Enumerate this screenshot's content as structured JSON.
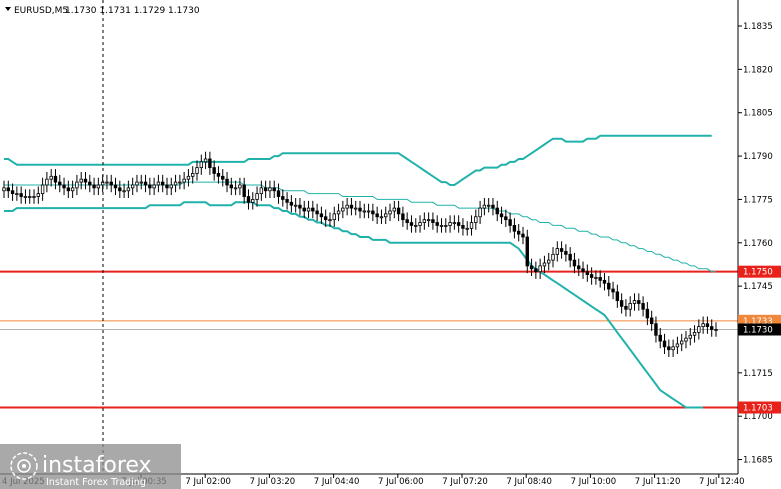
{
  "header": {
    "symbol": "EURUSD,M5",
    "ohlc": "1.1730 1.1731 1.1729 1.1730"
  },
  "watermark": {
    "brand": "instaforex",
    "tagline": "Instant Forex Trading"
  },
  "colors": {
    "background": "#ffffff",
    "axis": "#000000",
    "candle": "#000000",
    "band": "#20b2aa",
    "support_line": "#e8221b",
    "price_line": "#f0883c",
    "current_line": "#b0b0b0",
    "current_tag": "#000000"
  },
  "chart_data": {
    "type": "candlestick",
    "title": "EURUSD,M5",
    "ylim": [
      1.168,
      1.1844
    ],
    "y_ticks": [
      "1.1835",
      "1.1820",
      "1.1805",
      "1.1790",
      "1.1775",
      "1.1760",
      "1.1745",
      "1.1730",
      "1.1715",
      "1.1700",
      "1.1685"
    ],
    "x_ticks": [
      "7 Jul 00:35",
      "7 Jul 02:00",
      "7 Jul 03:20",
      "7 Jul 04:40",
      "7 Jul 06:00",
      "7 Jul 07:20",
      "7 Jul 08:40",
      "7 Jul 10:00",
      "7 Jul 11:20",
      "7 Jul 12:40"
    ],
    "first_x_label": "4 Jul 2025",
    "horizontal_levels": [
      {
        "label": "1.1750",
        "value": 1.175,
        "kind": "support"
      },
      {
        "label": "1.1703",
        "value": 1.1703,
        "kind": "support"
      },
      {
        "label": "1.1733",
        "value": 1.1733,
        "kind": "price"
      }
    ],
    "current_price": {
      "label": "1.1730",
      "value": 1.173
    },
    "series": [
      {
        "name": "close",
        "values": [
          1.1779,
          1.1778,
          1.1777,
          1.1777,
          1.1776,
          1.1776,
          1.1776,
          1.1776,
          1.1777,
          1.178,
          1.1782,
          1.1783,
          1.1781,
          1.178,
          1.1779,
          1.1778,
          1.1779,
          1.1781,
          1.1782,
          1.1781,
          1.178,
          1.1779,
          1.178,
          1.1781,
          1.1781,
          1.178,
          1.1779,
          1.1778,
          1.1778,
          1.1779,
          1.178,
          1.1781,
          1.1781,
          1.178,
          1.1779,
          1.178,
          1.1781,
          1.178,
          1.1779,
          1.178,
          1.1781,
          1.1781,
          1.1782,
          1.1783,
          1.1784,
          1.1786,
          1.1788,
          1.1789,
          1.1786,
          1.1784,
          1.1783,
          1.1782,
          1.178,
          1.1779,
          1.1779,
          1.178,
          1.1776,
          1.1774,
          1.1775,
          1.1777,
          1.1779,
          1.1778,
          1.1779,
          1.1778,
          1.1776,
          1.1775,
          1.1774,
          1.1773,
          1.1773,
          1.1772,
          1.1771,
          1.1772,
          1.1771,
          1.177,
          1.1769,
          1.1768,
          1.1768,
          1.177,
          1.1771,
          1.1772,
          1.1773,
          1.1772,
          1.1772,
          1.1771,
          1.1771,
          1.1771,
          1.177,
          1.1769,
          1.1769,
          1.177,
          1.1771,
          1.1772,
          1.177,
          1.1768,
          1.1767,
          1.1766,
          1.1766,
          1.1767,
          1.1768,
          1.1768,
          1.1767,
          1.1766,
          1.1766,
          1.1766,
          1.1767,
          1.1767,
          1.1766,
          1.1765,
          1.1765,
          1.1767,
          1.1769,
          1.1772,
          1.1773,
          1.1773,
          1.1772,
          1.177,
          1.1769,
          1.1768,
          1.1766,
          1.1764,
          1.1763,
          1.1762,
          1.1752,
          1.1751,
          1.175,
          1.1752,
          1.1753,
          1.1754,
          1.1756,
          1.1758,
          1.1757,
          1.1756,
          1.1754,
          1.1752,
          1.1751,
          1.175,
          1.1749,
          1.1748,
          1.1748,
          1.1747,
          1.1746,
          1.1744,
          1.1743,
          1.174,
          1.1738,
          1.1737,
          1.1739,
          1.174,
          1.1739,
          1.1737,
          1.1734,
          1.1732,
          1.1728,
          1.1726,
          1.1724,
          1.1723,
          1.1724,
          1.1725,
          1.1726,
          1.1727,
          1.1728,
          1.1729,
          1.1731,
          1.1732,
          1.1731,
          1.173,
          1.173
        ]
      },
      {
        "name": "open",
        "values": [
          1.1778,
          1.1779,
          1.1778,
          1.1777,
          1.1777,
          1.1776,
          1.1776,
          1.1776,
          1.1776,
          1.1777,
          1.178,
          1.1782,
          1.1783,
          1.1781,
          1.178,
          1.1779,
          1.1778,
          1.1779,
          1.1781,
          1.1782,
          1.1781,
          1.178,
          1.1779,
          1.178,
          1.1781,
          1.1781,
          1.178,
          1.1779,
          1.1778,
          1.1778,
          1.1779,
          1.178,
          1.1781,
          1.1781,
          1.178,
          1.1779,
          1.178,
          1.1781,
          1.178,
          1.1779,
          1.178,
          1.1781,
          1.1781,
          1.1782,
          1.1783,
          1.1784,
          1.1786,
          1.1788,
          1.1789,
          1.1786,
          1.1784,
          1.1783,
          1.1782,
          1.178,
          1.1779,
          1.1779,
          1.178,
          1.1776,
          1.1774,
          1.1775,
          1.1777,
          1.1779,
          1.1778,
          1.1779,
          1.1778,
          1.1776,
          1.1775,
          1.1774,
          1.1773,
          1.1773,
          1.1772,
          1.1771,
          1.1772,
          1.1771,
          1.177,
          1.1769,
          1.1768,
          1.1768,
          1.177,
          1.1771,
          1.1772,
          1.1773,
          1.1772,
          1.1772,
          1.1771,
          1.1771,
          1.1771,
          1.177,
          1.1769,
          1.1769,
          1.177,
          1.1771,
          1.1772,
          1.177,
          1.1768,
          1.1767,
          1.1766,
          1.1766,
          1.1767,
          1.1768,
          1.1768,
          1.1767,
          1.1766,
          1.1766,
          1.1766,
          1.1767,
          1.1767,
          1.1766,
          1.1765,
          1.1765,
          1.1767,
          1.1769,
          1.1772,
          1.1773,
          1.1773,
          1.1772,
          1.177,
          1.1769,
          1.1768,
          1.1766,
          1.1764,
          1.1763,
          1.1762,
          1.1752,
          1.1751,
          1.175,
          1.1752,
          1.1753,
          1.1754,
          1.1756,
          1.1758,
          1.1757,
          1.1756,
          1.1754,
          1.1752,
          1.1751,
          1.175,
          1.1749,
          1.1748,
          1.1748,
          1.1747,
          1.1746,
          1.1744,
          1.1743,
          1.174,
          1.1738,
          1.1737,
          1.1739,
          1.174,
          1.1739,
          1.1737,
          1.1734,
          1.1732,
          1.1728,
          1.1726,
          1.1724,
          1.1723,
          1.1724,
          1.1725,
          1.1726,
          1.1727,
          1.1728,
          1.1729,
          1.1731,
          1.1732,
          1.1731,
          1.173
        ]
      },
      {
        "name": "upper_band",
        "values": [
          1.1789,
          1.1789,
          1.1788,
          1.1787,
          1.1787,
          1.1787,
          1.1787,
          1.1787,
          1.1787,
          1.1787,
          1.1787,
          1.1787,
          1.1787,
          1.1787,
          1.1787,
          1.1787,
          1.1787,
          1.1787,
          1.1787,
          1.1787,
          1.1787,
          1.1787,
          1.1787,
          1.1787,
          1.1787,
          1.1787,
          1.1787,
          1.1787,
          1.1787,
          1.1787,
          1.1787,
          1.1787,
          1.1787,
          1.1787,
          1.1787,
          1.1787,
          1.1787,
          1.1787,
          1.1787,
          1.1787,
          1.1787,
          1.1787,
          1.1787,
          1.1787,
          1.1788,
          1.1788,
          1.1788,
          1.1788,
          1.1788,
          1.1788,
          1.1788,
          1.1788,
          1.1788,
          1.1788,
          1.1788,
          1.1788,
          1.1788,
          1.1789,
          1.1789,
          1.1789,
          1.1789,
          1.1789,
          1.1789,
          1.179,
          1.179,
          1.1791,
          1.1791,
          1.1791,
          1.1791,
          1.1791,
          1.1791,
          1.1791,
          1.1791,
          1.1791,
          1.1791,
          1.1791,
          1.1791,
          1.1791,
          1.1791,
          1.1791,
          1.1791,
          1.1791,
          1.1791,
          1.1791,
          1.1791,
          1.1791,
          1.1791,
          1.1791,
          1.1791,
          1.1791,
          1.1791,
          1.1791,
          1.1791,
          1.179,
          1.1789,
          1.1788,
          1.1787,
          1.1786,
          1.1785,
          1.1784,
          1.1783,
          1.1782,
          1.1781,
          1.1781,
          1.178,
          1.178,
          1.1781,
          1.1782,
          1.1783,
          1.1784,
          1.1785,
          1.1785,
          1.1786,
          1.1786,
          1.1786,
          1.1786,
          1.1787,
          1.1787,
          1.1788,
          1.1788,
          1.1789,
          1.1789,
          1.179,
          1.1791,
          1.1792,
          1.1793,
          1.1794,
          1.1795,
          1.1796,
          1.1796,
          1.1796,
          1.1795,
          1.1795,
          1.1795,
          1.1795,
          1.1795,
          1.1796,
          1.1796,
          1.1796,
          1.1797,
          1.1797,
          1.1797,
          1.1797,
          1.1797,
          1.1797,
          1.1797,
          1.1797,
          1.1797,
          1.1797,
          1.1797,
          1.1797,
          1.1797,
          1.1797,
          1.1797,
          1.1797,
          1.1797,
          1.1797,
          1.1797,
          1.1797,
          1.1797,
          1.1797,
          1.1797,
          1.1797,
          1.1797,
          1.1797,
          1.1797
        ]
      },
      {
        "name": "lower_band",
        "values": [
          1.1771,
          1.1771,
          1.1771,
          1.1772,
          1.1772,
          1.1772,
          1.1772,
          1.1772,
          1.1772,
          1.1772,
          1.1772,
          1.1772,
          1.1772,
          1.1772,
          1.1772,
          1.1772,
          1.1772,
          1.1772,
          1.1772,
          1.1772,
          1.1772,
          1.1772,
          1.1772,
          1.1772,
          1.1772,
          1.1772,
          1.1772,
          1.1772,
          1.1772,
          1.1772,
          1.1772,
          1.1772,
          1.1772,
          1.1772,
          1.1773,
          1.1773,
          1.1773,
          1.1773,
          1.1773,
          1.1773,
          1.1773,
          1.1773,
          1.1774,
          1.1774,
          1.1774,
          1.1774,
          1.1774,
          1.1774,
          1.1773,
          1.1773,
          1.1773,
          1.1773,
          1.1773,
          1.1773,
          1.1774,
          1.1774,
          1.1774,
          1.1774,
          1.1774,
          1.1773,
          1.1773,
          1.1773,
          1.1773,
          1.1772,
          1.1772,
          1.1771,
          1.1771,
          1.177,
          1.177,
          1.1769,
          1.1769,
          1.1768,
          1.1768,
          1.1767,
          1.1767,
          1.1766,
          1.1766,
          1.1765,
          1.1765,
          1.1764,
          1.1764,
          1.1763,
          1.1763,
          1.1762,
          1.1762,
          1.1762,
          1.1761,
          1.1761,
          1.1761,
          1.1761,
          1.176,
          1.176,
          1.176,
          1.176,
          1.176,
          1.176,
          1.176,
          1.176,
          1.176,
          1.176,
          1.176,
          1.176,
          1.176,
          1.176,
          1.176,
          1.176,
          1.176,
          1.176,
          1.176,
          1.176,
          1.176,
          1.176,
          1.176,
          1.176,
          1.176,
          1.176,
          1.176,
          1.176,
          1.176,
          1.1759,
          1.1758,
          1.1756,
          1.1754,
          1.1752,
          1.1751,
          1.175,
          1.1749,
          1.1748,
          1.1747,
          1.1746,
          1.1745,
          1.1744,
          1.1743,
          1.1742,
          1.1741,
          1.174,
          1.1739,
          1.1738,
          1.1737,
          1.1736,
          1.1735,
          1.1733,
          1.1731,
          1.1729,
          1.1727,
          1.1725,
          1.1723,
          1.1721,
          1.1719,
          1.1717,
          1.1715,
          1.1713,
          1.1711,
          1.1709,
          1.1708,
          1.1707,
          1.1706,
          1.1705,
          1.1704,
          1.1703,
          1.1703,
          1.1703,
          1.1703,
          1.1703
        ]
      },
      {
        "name": "moving_average",
        "values": [
          1.178,
          1.178,
          1.178,
          1.178,
          1.178,
          1.178,
          1.178,
          1.178,
          1.178,
          1.178,
          1.178,
          1.178,
          1.178,
          1.178,
          1.178,
          1.178,
          1.178,
          1.178,
          1.178,
          1.178,
          1.178,
          1.178,
          1.178,
          1.178,
          1.178,
          1.178,
          1.178,
          1.178,
          1.178,
          1.178,
          1.178,
          1.178,
          1.178,
          1.178,
          1.178,
          1.178,
          1.178,
          1.178,
          1.178,
          1.178,
          1.178,
          1.178,
          1.1781,
          1.1781,
          1.1781,
          1.1781,
          1.1781,
          1.1781,
          1.1781,
          1.1781,
          1.1781,
          1.1781,
          1.1781,
          1.1781,
          1.1781,
          1.1781,
          1.178,
          1.178,
          1.178,
          1.178,
          1.178,
          1.1779,
          1.1779,
          1.1779,
          1.1779,
          1.1778,
          1.1778,
          1.1778,
          1.1778,
          1.1778,
          1.1778,
          1.1777,
          1.1777,
          1.1777,
          1.1777,
          1.1777,
          1.1777,
          1.1777,
          1.1777,
          1.1776,
          1.1776,
          1.1776,
          1.1776,
          1.1776,
          1.1776,
          1.1776,
          1.1776,
          1.1775,
          1.1775,
          1.1775,
          1.1775,
          1.1775,
          1.1775,
          1.1775,
          1.1775,
          1.1774,
          1.1774,
          1.1774,
          1.1774,
          1.1774,
          1.1774,
          1.1773,
          1.1773,
          1.1773,
          1.1773,
          1.1773,
          1.1772,
          1.1772,
          1.1772,
          1.1772,
          1.1772,
          1.1772,
          1.1772,
          1.1772,
          1.1772,
          1.1771,
          1.1771,
          1.1771,
          1.177,
          1.177,
          1.177,
          1.1769,
          1.1769,
          1.1768,
          1.1768,
          1.1767,
          1.1767,
          1.1767,
          1.1766,
          1.1766,
          1.1766,
          1.1765,
          1.1765,
          1.1765,
          1.1764,
          1.1764,
          1.1764,
          1.1763,
          1.1763,
          1.1762,
          1.1762,
          1.1762,
          1.1761,
          1.1761,
          1.176,
          1.176,
          1.1759,
          1.1759,
          1.1758,
          1.1758,
          1.1757,
          1.1757,
          1.1756,
          1.1756,
          1.1755,
          1.1755,
          1.1754,
          1.1754,
          1.1753,
          1.1753,
          1.1752,
          1.1752,
          1.1751,
          1.1751,
          1.1751,
          1.175,
          1.175
        ]
      }
    ]
  }
}
